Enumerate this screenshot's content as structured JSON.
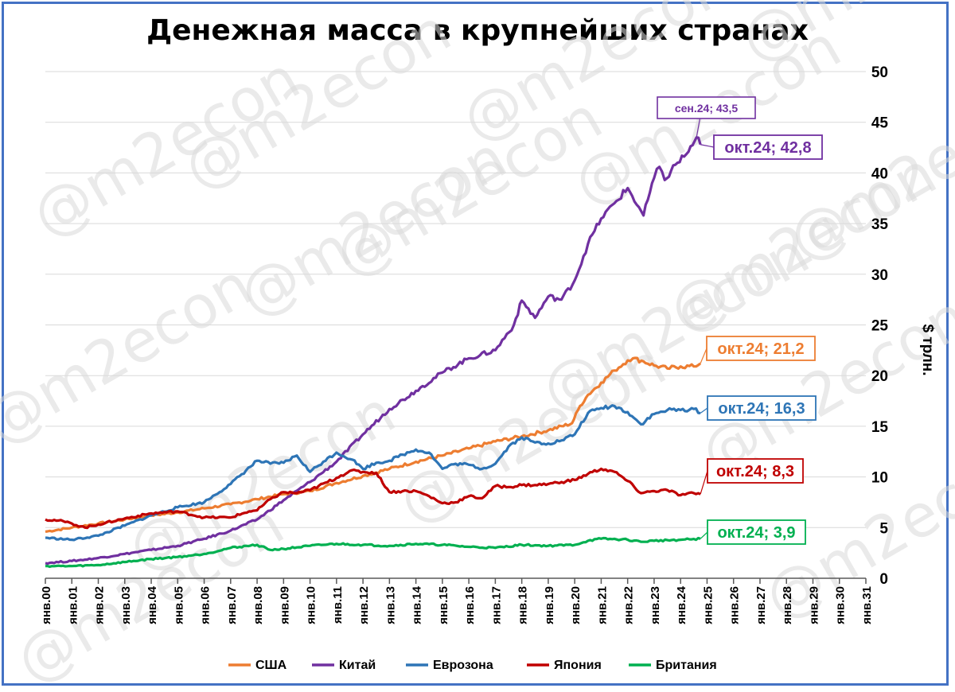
{
  "chart_data": {
    "type": "line",
    "title": "Денежная масса в крупнейших странах",
    "ylabel": "$ трлн.",
    "xlabel": "",
    "ylim": [
      0,
      50
    ],
    "yticks": [
      0,
      5,
      10,
      15,
      20,
      25,
      30,
      35,
      40,
      45,
      50
    ],
    "x_range": [
      2000,
      2031
    ],
    "xticks": [
      "янв.00",
      "янв.01",
      "янв.02",
      "янв.03",
      "янв.04",
      "янв.05",
      "янв.06",
      "янв.07",
      "янв.08",
      "янв.09",
      "янв.10",
      "янв.11",
      "янв.12",
      "янв.13",
      "янв.14",
      "янв.15",
      "янв.16",
      "янв.17",
      "янв.18",
      "янв.19",
      "янв.20",
      "янв.21",
      "янв.22",
      "янв.23",
      "янв.24",
      "янв.25",
      "янв.26",
      "янв.27",
      "янв.28",
      "янв.29",
      "янв.30",
      "янв.31"
    ],
    "grid": true,
    "legend_position": "bottom",
    "watermark": "@m2econ",
    "series": [
      {
        "name": "США",
        "color": "#ed7d31",
        "points": [
          [
            2000,
            4.6
          ],
          [
            2001,
            5.0
          ],
          [
            2002,
            5.4
          ],
          [
            2003,
            5.8
          ],
          [
            2004,
            6.2
          ],
          [
            2005,
            6.5
          ],
          [
            2006,
            6.9
          ],
          [
            2007,
            7.3
          ],
          [
            2008,
            7.8
          ],
          [
            2009,
            8.3
          ],
          [
            2010,
            8.6
          ],
          [
            2011,
            9.4
          ],
          [
            2012,
            10.1
          ],
          [
            2013,
            10.8
          ],
          [
            2014,
            11.5
          ],
          [
            2015,
            12.1
          ],
          [
            2016,
            12.8
          ],
          [
            2017,
            13.5
          ],
          [
            2018,
            14.0
          ],
          [
            2019,
            14.6
          ],
          [
            2019.9,
            15.3
          ],
          [
            2020.2,
            17.0
          ],
          [
            2020.5,
            18.1
          ],
          [
            2021.0,
            19.3
          ],
          [
            2021.5,
            20.5
          ],
          [
            2022.0,
            21.5
          ],
          [
            2022.2,
            21.7
          ],
          [
            2022.6,
            21.4
          ],
          [
            2023.0,
            21.0
          ],
          [
            2023.5,
            20.7
          ],
          [
            2024.0,
            20.9
          ],
          [
            2024.5,
            20.9
          ],
          [
            2024.75,
            21.2
          ]
        ],
        "annotation": "окт.24; 21,2"
      },
      {
        "name": "Китай",
        "color": "#7030a0",
        "points": [
          [
            2000,
            1.5
          ],
          [
            2001,
            1.7
          ],
          [
            2002,
            2.0
          ],
          [
            2003,
            2.4
          ],
          [
            2004,
            2.8
          ],
          [
            2005,
            3.2
          ],
          [
            2006,
            3.9
          ],
          [
            2007,
            4.7
          ],
          [
            2008,
            5.8
          ],
          [
            2009,
            7.7
          ],
          [
            2010,
            9.5
          ],
          [
            2011,
            11.5
          ],
          [
            2012,
            14.2
          ],
          [
            2013,
            16.7
          ],
          [
            2014,
            18.5
          ],
          [
            2015,
            20.3
          ],
          [
            2016,
            21.7
          ],
          [
            2017,
            22.5
          ],
          [
            2017.7,
            25.0
          ],
          [
            2018.0,
            27.4
          ],
          [
            2018.5,
            25.7
          ],
          [
            2019.0,
            27.8
          ],
          [
            2019.5,
            27.5
          ],
          [
            2020.0,
            29.4
          ],
          [
            2020.5,
            33.0
          ],
          [
            2021.0,
            35.5
          ],
          [
            2021.5,
            37.0
          ],
          [
            2022.0,
            38.5
          ],
          [
            2022.6,
            35.8
          ],
          [
            2023.0,
            39.5
          ],
          [
            2023.2,
            40.6
          ],
          [
            2023.4,
            39.3
          ],
          [
            2023.8,
            40.8
          ],
          [
            2024.3,
            42.1
          ],
          [
            2024.6,
            43.5
          ],
          [
            2024.75,
            42.8
          ]
        ],
        "annotation": "окт.24; 42,8",
        "peak_annotation": "сен.24; 43,5"
      },
      {
        "name": "Еврозона",
        "color": "#2e75b6",
        "points": [
          [
            2000,
            4.0
          ],
          [
            2001,
            3.8
          ],
          [
            2002,
            4.2
          ],
          [
            2003,
            5.2
          ],
          [
            2004,
            6.2
          ],
          [
            2005,
            7.0
          ],
          [
            2006,
            7.5
          ],
          [
            2007,
            9.3
          ],
          [
            2008,
            11.6
          ],
          [
            2008.5,
            11.3
          ],
          [
            2009,
            11.4
          ],
          [
            2009.5,
            12.1
          ],
          [
            2010,
            10.5
          ],
          [
            2010.5,
            11.5
          ],
          [
            2011,
            12.4
          ],
          [
            2011.6,
            11.7
          ],
          [
            2012,
            10.8
          ],
          [
            2012.5,
            11.4
          ],
          [
            2013,
            11.6
          ],
          [
            2013.5,
            12.2
          ],
          [
            2014,
            12.7
          ],
          [
            2014.5,
            12.4
          ],
          [
            2015,
            10.8
          ],
          [
            2015.5,
            11.3
          ],
          [
            2016,
            11.2
          ],
          [
            2016.5,
            10.8
          ],
          [
            2017,
            11.3
          ],
          [
            2017.5,
            13.0
          ],
          [
            2018,
            13.9
          ],
          [
            2018.5,
            13.4
          ],
          [
            2019,
            13.3
          ],
          [
            2019.5,
            13.6
          ],
          [
            2020,
            14.2
          ],
          [
            2020.5,
            16.3
          ],
          [
            2021,
            16.8
          ],
          [
            2021.5,
            17.0
          ],
          [
            2022,
            16.4
          ],
          [
            2022.5,
            15.2
          ],
          [
            2023,
            16.2
          ],
          [
            2023.5,
            16.6
          ],
          [
            2024,
            16.6
          ],
          [
            2024.5,
            16.7
          ],
          [
            2024.75,
            16.3
          ]
        ],
        "annotation": "окт.24; 16,3"
      },
      {
        "name": "Япония",
        "color": "#c00000",
        "points": [
          [
            2000,
            5.8
          ],
          [
            2000.5,
            5.7
          ],
          [
            2001,
            5.4
          ],
          [
            2001.5,
            5.0
          ],
          [
            2002,
            5.3
          ],
          [
            2003,
            5.9
          ],
          [
            2004,
            6.4
          ],
          [
            2005,
            6.6
          ],
          [
            2006,
            6.0
          ],
          [
            2007,
            6.0
          ],
          [
            2007.7,
            6.6
          ],
          [
            2008,
            6.7
          ],
          [
            2008.5,
            7.8
          ],
          [
            2009,
            8.5
          ],
          [
            2009.5,
            8.4
          ],
          [
            2010,
            8.7
          ],
          [
            2011,
            9.9
          ],
          [
            2011.5,
            10.6
          ],
          [
            2012,
            10.5
          ],
          [
            2012.5,
            10.4
          ],
          [
            2013,
            8.5
          ],
          [
            2013.5,
            8.6
          ],
          [
            2014,
            8.6
          ],
          [
            2014.5,
            8.1
          ],
          [
            2015,
            7.4
          ],
          [
            2015.5,
            7.5
          ],
          [
            2016,
            8.1
          ],
          [
            2016.5,
            7.9
          ],
          [
            2017,
            9.1
          ],
          [
            2017.5,
            9.0
          ],
          [
            2018,
            9.2
          ],
          [
            2018.5,
            9.2
          ],
          [
            2019,
            9.3
          ],
          [
            2019.5,
            9.5
          ],
          [
            2020,
            9.7
          ],
          [
            2020.5,
            10.3
          ],
          [
            2021,
            10.8
          ],
          [
            2021.5,
            10.5
          ],
          [
            2022,
            9.6
          ],
          [
            2022.5,
            8.4
          ],
          [
            2023,
            8.6
          ],
          [
            2023.5,
            8.7
          ],
          [
            2024,
            8.2
          ],
          [
            2024.5,
            8.4
          ],
          [
            2024.75,
            8.3
          ]
        ],
        "annotation": "окт.24; 8,3"
      },
      {
        "name": "Британия",
        "color": "#00b050",
        "points": [
          [
            2000,
            1.2
          ],
          [
            2001,
            1.2
          ],
          [
            2002,
            1.3
          ],
          [
            2003,
            1.6
          ],
          [
            2004,
            1.9
          ],
          [
            2005,
            2.1
          ],
          [
            2006,
            2.4
          ],
          [
            2007,
            3.0
          ],
          [
            2008,
            3.3
          ],
          [
            2008.5,
            2.8
          ],
          [
            2009,
            2.9
          ],
          [
            2010,
            3.2
          ],
          [
            2011,
            3.4
          ],
          [
            2012,
            3.3
          ],
          [
            2013,
            3.2
          ],
          [
            2014,
            3.4
          ],
          [
            2015,
            3.3
          ],
          [
            2016,
            3.1
          ],
          [
            2017,
            3.0
          ],
          [
            2018,
            3.3
          ],
          [
            2019,
            3.2
          ],
          [
            2020,
            3.3
          ],
          [
            2020.5,
            3.7
          ],
          [
            2021,
            3.9
          ],
          [
            2022,
            3.8
          ],
          [
            2022.5,
            3.6
          ],
          [
            2023,
            3.7
          ],
          [
            2024,
            3.8
          ],
          [
            2024.75,
            3.9
          ]
        ],
        "annotation": "окт.24; 3,9"
      }
    ]
  }
}
